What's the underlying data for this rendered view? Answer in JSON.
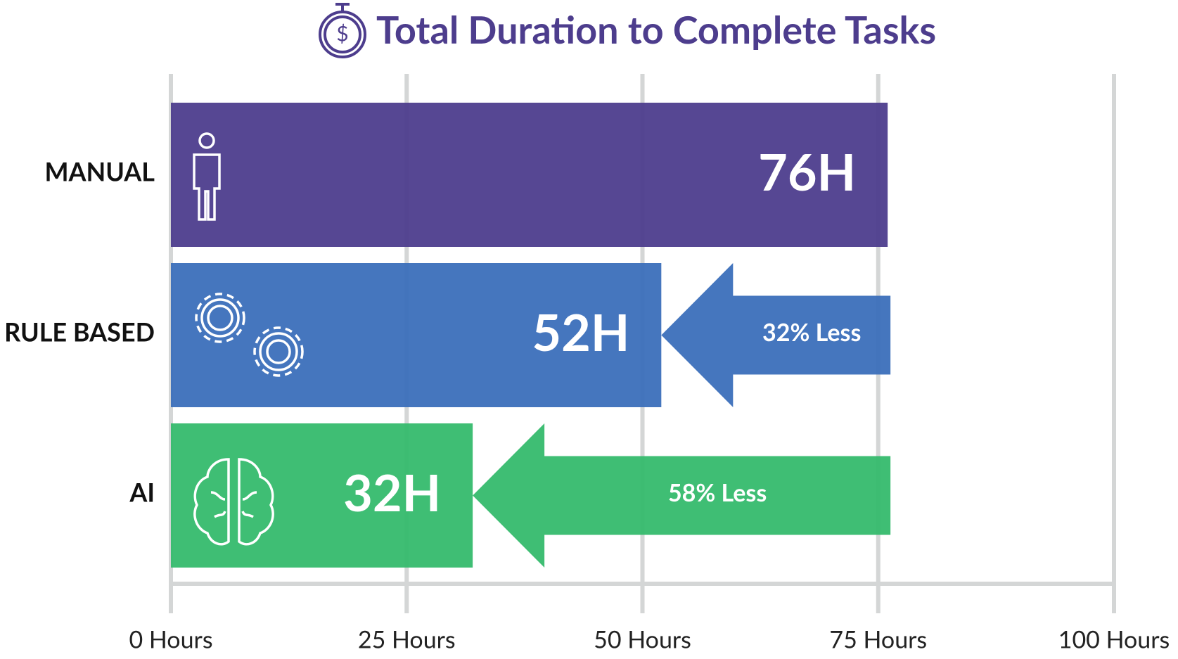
{
  "chart_data": {
    "type": "bar",
    "orientation": "horizontal",
    "title": "Total Duration to Complete Tasks",
    "categories": [
      "MANUAL",
      "RULE BASED",
      "AI"
    ],
    "values": [
      76,
      52,
      32
    ],
    "value_labels": [
      "76H",
      "52H",
      "32H"
    ],
    "colors": [
      "#4d3d8d",
      "#3b6fbb",
      "#35bb6d"
    ],
    "annotations": [
      null,
      "32% Less",
      "58% Less"
    ],
    "xlim": [
      0,
      100
    ],
    "xticks": [
      {
        "value": 0,
        "label": "0 Hours"
      },
      {
        "value": 25,
        "label": "25 Hours"
      },
      {
        "value": 50,
        "label": "50 Hours"
      },
      {
        "value": 75,
        "label": "75 Hours"
      },
      {
        "value": 100,
        "label": "100 Hours"
      }
    ],
    "grid": true
  }
}
